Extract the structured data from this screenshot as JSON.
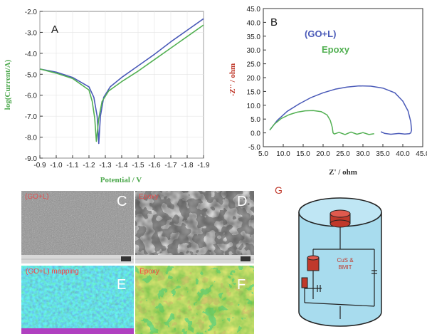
{
  "chart_data": [
    {
      "panel": "A",
      "type": "line",
      "xlabel": "Potential / V",
      "ylabel": "log(Current/A)",
      "xlim": [
        -0.9,
        -1.9
      ],
      "ylim": [
        -9.0,
        -2.0
      ],
      "x_ticks": [
        "-0.9",
        "-1.0",
        "-1.1",
        "-1.2",
        "-1.3",
        "-1.4",
        "-1.5",
        "-1.6",
        "-1.7",
        "-1.8",
        "-1.9"
      ],
      "y_ticks": [
        "-2.0",
        "-3.0",
        "-4.0",
        "-5.0",
        "-6.0",
        "-7.0",
        "-8.0",
        "-9.0"
      ],
      "series": [
        {
          "color": "#4a5ab8",
          "x": [
            -0.9,
            -1.0,
            -1.1,
            -1.2,
            -1.23,
            -1.25,
            -1.26,
            -1.27,
            -1.29,
            -1.33,
            -1.4,
            -1.5,
            -1.6,
            -1.7,
            -1.8,
            -1.9
          ],
          "y": [
            -4.75,
            -4.9,
            -5.15,
            -5.6,
            -6.1,
            -7.0,
            -8.3,
            -7.0,
            -6.1,
            -5.6,
            -5.15,
            -4.6,
            -4.05,
            -3.45,
            -2.9,
            -2.35
          ]
        },
        {
          "color": "#52b052",
          "x": [
            -0.9,
            -1.0,
            -1.1,
            -1.2,
            -1.22,
            -1.235,
            -1.245,
            -1.26,
            -1.28,
            -1.32,
            -1.4,
            -1.5,
            -1.6,
            -1.7,
            -1.8,
            -1.9
          ],
          "y": [
            -4.75,
            -4.95,
            -5.2,
            -5.75,
            -6.3,
            -7.1,
            -8.2,
            -7.1,
            -6.3,
            -5.8,
            -5.35,
            -4.85,
            -4.3,
            -3.75,
            -3.2,
            -2.65
          ]
        }
      ]
    },
    {
      "panel": "B",
      "type": "line",
      "xlabel": "Z' / ohm",
      "ylabel": "-Z'' / ohm",
      "xlim": [
        5.0,
        45.0
      ],
      "ylim": [
        -5.0,
        45.0
      ],
      "x_ticks": [
        "5.0",
        "10.0",
        "15.0",
        "20.0",
        "25.0",
        "30.0",
        "35.0",
        "40.0",
        "45.0"
      ],
      "y_ticks": [
        "-5.0",
        "0.0",
        "5.0",
        "10.0",
        "15.0",
        "20.0",
        "25.0",
        "30.0",
        "35.0",
        "40.0",
        "45.0"
      ],
      "legend": [
        "(GO+L)",
        "Epoxy"
      ],
      "series": [
        {
          "name": "(GO+L)",
          "color": "#4a5ab8",
          "x": [
            6.6,
            8.5,
            11,
            14,
            17,
            20,
            23,
            26,
            29,
            32,
            35,
            38,
            40,
            41.3,
            42.0,
            42.2,
            42.0,
            41.6,
            40.5,
            39,
            37,
            35.5,
            34.5
          ],
          "y": [
            1.0,
            4.5,
            7.8,
            10.5,
            12.8,
            14.5,
            15.8,
            16.6,
            17.0,
            16.9,
            16.2,
            14.5,
            11.5,
            8.0,
            4.0,
            1.0,
            0.0,
            -0.3,
            -0.4,
            -0.2,
            -0.5,
            -0.2,
            0.4
          ]
        },
        {
          "name": "Epoxy",
          "color": "#52b052",
          "x": [
            6.6,
            7.8,
            9.5,
            11.5,
            13.5,
            15.5,
            17.5,
            19.5,
            21.0,
            21.8,
            22.3,
            22.5,
            22.8,
            24,
            25.5,
            27,
            28.5,
            30,
            31.5,
            32.8
          ],
          "y": [
            1.0,
            3.2,
            5.2,
            6.6,
            7.5,
            8.0,
            8.1,
            7.7,
            6.5,
            4.5,
            2.0,
            0.0,
            -0.4,
            0.2,
            -0.6,
            0.3,
            -0.5,
            0.1,
            -0.6,
            -0.3
          ]
        }
      ]
    }
  ],
  "labels": {
    "panelA": "A",
    "panelB": "B",
    "panelC": "C",
    "panelD": "D",
    "panelE": "E",
    "panelF": "F",
    "panelG": "G",
    "c_title": "(GO+L)",
    "d_title": "Epoxy",
    "e_title": "(GO+L) mapping",
    "f_title": "Epoxy",
    "circuit_text": "CuS & BMIT"
  },
  "colors": {
    "go_l": "#4a5ab8",
    "epoxy": "#52b052",
    "axis_label": "#4ca84c",
    "circuit_text": "#c0392b"
  }
}
